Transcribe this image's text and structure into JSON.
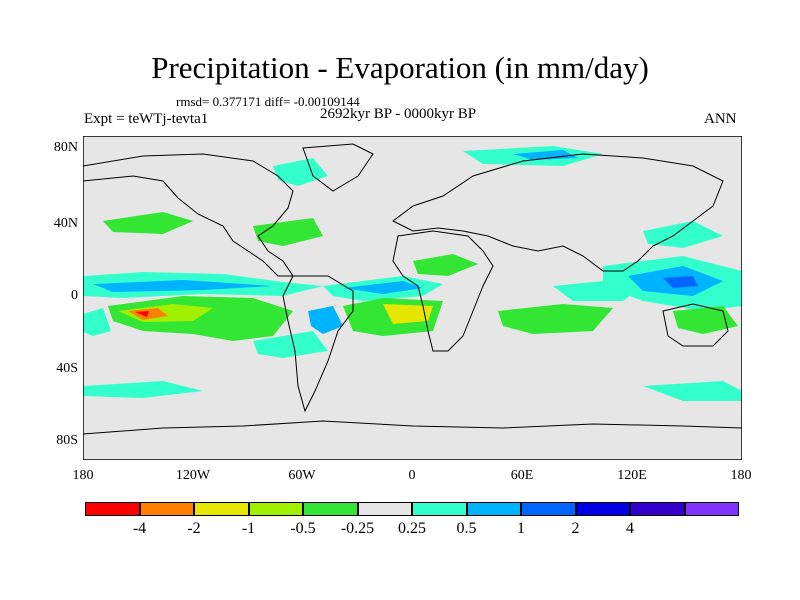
{
  "title": "Precipitation - Evaporation (in mm/day)",
  "stats": "rmsd= 0.377171  diff= -0.00109144",
  "period": "2692kyr BP - 0000kyr BP",
  "experiment": "Expt = teWTj-tevta1",
  "season": "ANN",
  "lat_labels": [
    "80N",
    "40N",
    "0",
    "40S",
    "80S"
  ],
  "lon_labels": [
    "180",
    "120W",
    "60W",
    "0",
    "60E",
    "120E",
    "180"
  ],
  "colorbar": {
    "colors": [
      "#ff0000",
      "#ff8000",
      "#e6e600",
      "#a0f000",
      "#33e633",
      "#e6e6e6",
      "#33ffcc",
      "#00b3ff",
      "#0066ff",
      "#0000e6",
      "#3300cc",
      "#8033ff"
    ],
    "labels": [
      "-4",
      "-2",
      "-1",
      "-0.5",
      "-0.25",
      "0.25",
      "0.5",
      "1",
      "2",
      "4"
    ]
  }
}
